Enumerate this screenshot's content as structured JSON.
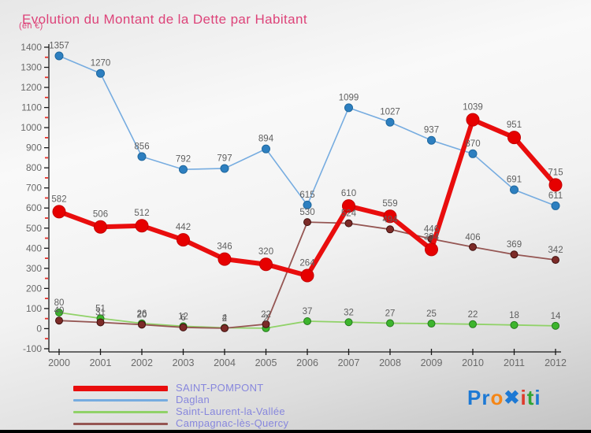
{
  "header": {
    "title": "Evolution du Montant de la Dette par Habitant",
    "subtitle": "(en €)",
    "title_color": "#dd4379"
  },
  "chart_data": {
    "type": "line",
    "title": "Evolution du Montant de la Dette par Habitant (en €)",
    "xlabel": "",
    "ylabel": "en €",
    "x": [
      2000,
      2001,
      2002,
      2003,
      2004,
      2005,
      2006,
      2007,
      2008,
      2009,
      2010,
      2011,
      2012
    ],
    "series": [
      {
        "name": "SAINT-POMPONT",
        "color": "#e90d0d",
        "marker_color": "#e60000",
        "marker_stroke": "#c40000",
        "line_width": 6,
        "marker_radius": 8,
        "values": [
          582,
          506,
          512,
          442,
          346,
          320,
          264,
          610,
          559,
          394,
          1039,
          951,
          715
        ]
      },
      {
        "name": "Daglan",
        "color": "#76ace0",
        "marker_color": "#2d7fc0",
        "marker_stroke": "#1f689e",
        "line_width": 1.6,
        "marker_radius": 5,
        "values": [
          1357,
          1270,
          856,
          792,
          797,
          894,
          615,
          1099,
          1027,
          937,
          870,
          691,
          611
        ]
      },
      {
        "name": "Saint-Laurent-la-Vallée",
        "color": "#90d268",
        "marker_color": "#3db52d",
        "marker_stroke": "#267a1e",
        "line_width": 1.8,
        "marker_radius": 4.5,
        "values": [
          80,
          51,
          26,
          12,
          4,
          2,
          37,
          32,
          27,
          25,
          22,
          18,
          14
        ]
      },
      {
        "name": "Campagnac-lès-Quercy",
        "color": "#955653",
        "marker_color": "#7c2b28",
        "marker_stroke": "#40100e",
        "line_width": 1.8,
        "marker_radius": 4.5,
        "values": [
          40,
          31,
          20,
          6,
          2,
          22,
          530,
          524,
          494,
          446,
          406,
          369,
          342
        ]
      }
    ],
    "ylim": [
      -100,
      1400
    ],
    "y_tick_step": 100,
    "y_minor_tick_step": 50,
    "grid": false,
    "legend_position": "bottom-left",
    "axis_color": "#1a1a1a",
    "tick_label_color": "#6a6a6a",
    "minor_tick_color": "#e8302a",
    "label_color": "#5f5f5f"
  },
  "legend": {
    "text_color": "#8787dd"
  },
  "logo": {
    "name": "Proxiti",
    "letters": [
      {
        "ch": "P",
        "color": "#1d79d4"
      },
      {
        "ch": "r",
        "color": "#1d79d4"
      },
      {
        "ch": "o",
        "color": "#f58616"
      },
      {
        "ch": "✖",
        "color": "#1d79d4"
      },
      {
        "ch": "i",
        "color": "#de3a2b"
      },
      {
        "ch": "t",
        "color": "#2fa535"
      },
      {
        "ch": "i",
        "color": "#1d79d4"
      }
    ]
  }
}
